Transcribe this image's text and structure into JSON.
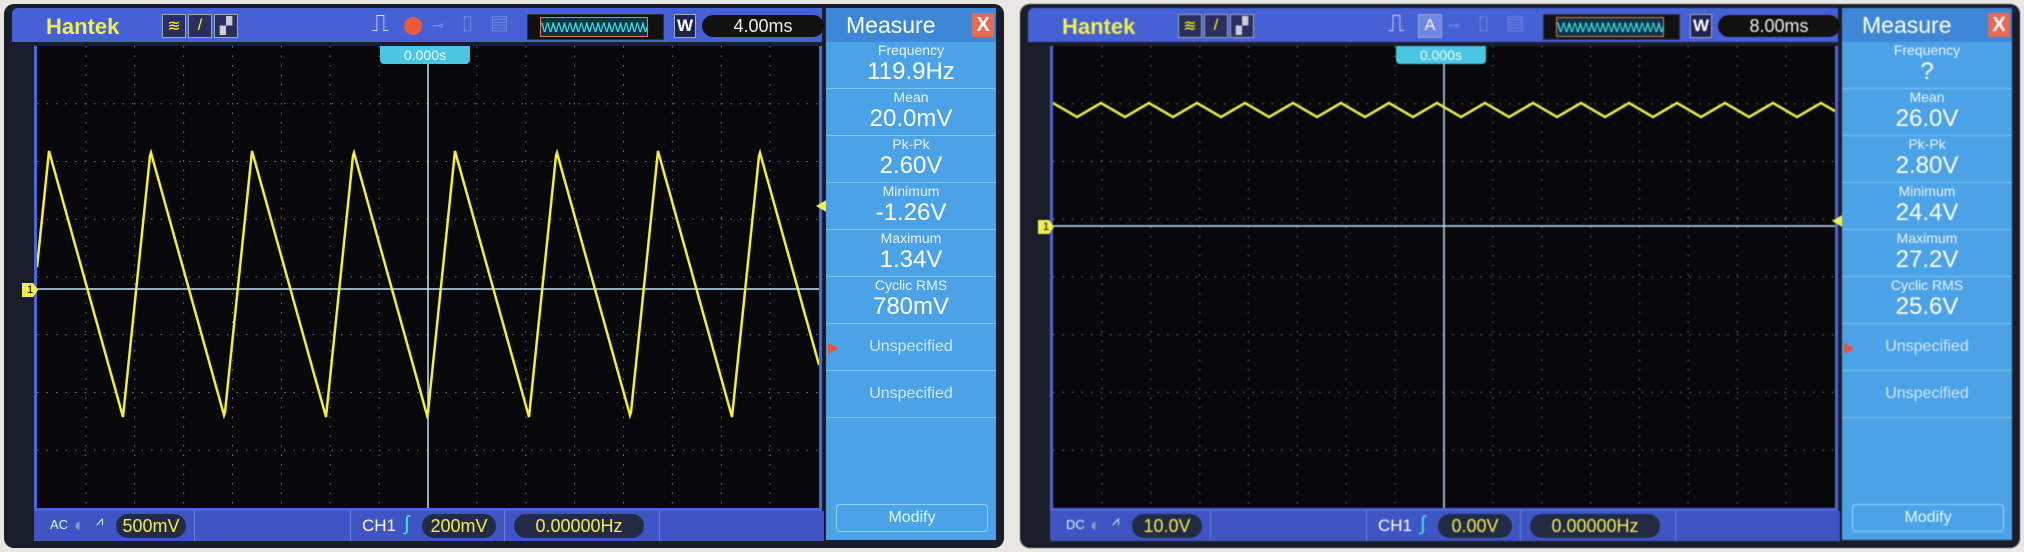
{
  "scopes": [
    {
      "brand": "Hantek",
      "icons": [
        "wave-mode-icon",
        "cursor-icon",
        "persist-icon"
      ],
      "run_state_icon": "record-icon",
      "timebase": "4.00ms",
      "w_label": "W",
      "trigger_time": "0.000s",
      "ch_marker": "1",
      "measure": {
        "title": "Measure",
        "close": "X",
        "items": [
          {
            "label": "Frequency",
            "value": "119.9Hz"
          },
          {
            "label": "Mean",
            "value": "20.0mV"
          },
          {
            "label": "Pk-Pk",
            "value": "2.60V"
          },
          {
            "label": "Minimum",
            "value": "-1.26V"
          },
          {
            "label": "Maximum",
            "value": "1.34V"
          },
          {
            "label": "Cyclic RMS",
            "value": "780mV"
          }
        ],
        "slots": [
          "Unspecified",
          "Unspecified"
        ],
        "modify": "Modify"
      },
      "bottom": {
        "coupling": "AC",
        "volts_div": "500mV",
        "channel": "CH1",
        "trigger_level": "200mV",
        "frequency": "0.00000Hz"
      }
    },
    {
      "brand": "Hantek",
      "icons": [
        "wave-mode-icon",
        "cursor-icon",
        "persist-icon"
      ],
      "run_state_icon": "auto-icon",
      "run_state_label": "A",
      "timebase": "8.00ms",
      "w_label": "W",
      "trigger_time": "0.000s",
      "ch_marker": "1",
      "measure": {
        "title": "Measure",
        "close": "X",
        "items": [
          {
            "label": "Frequency",
            "value": "?"
          },
          {
            "label": "Mean",
            "value": "26.0V"
          },
          {
            "label": "Pk-Pk",
            "value": "2.80V"
          },
          {
            "label": "Minimum",
            "value": "24.4V"
          },
          {
            "label": "Maximum",
            "value": "27.2V"
          },
          {
            "label": "Cyclic RMS",
            "value": "25.6V"
          }
        ],
        "slots": [
          "Unspecified",
          "Unspecified"
        ],
        "modify": "Modify"
      },
      "bottom": {
        "coupling": "DC",
        "volts_div": "10.0V",
        "channel": "CH1",
        "trigger_level": "0.00V",
        "frequency": "0.00000Hz"
      }
    }
  ],
  "colors": {
    "trace": "#f2ee3a",
    "panel": "#4ca2e6",
    "bar": "#4660d6"
  }
}
